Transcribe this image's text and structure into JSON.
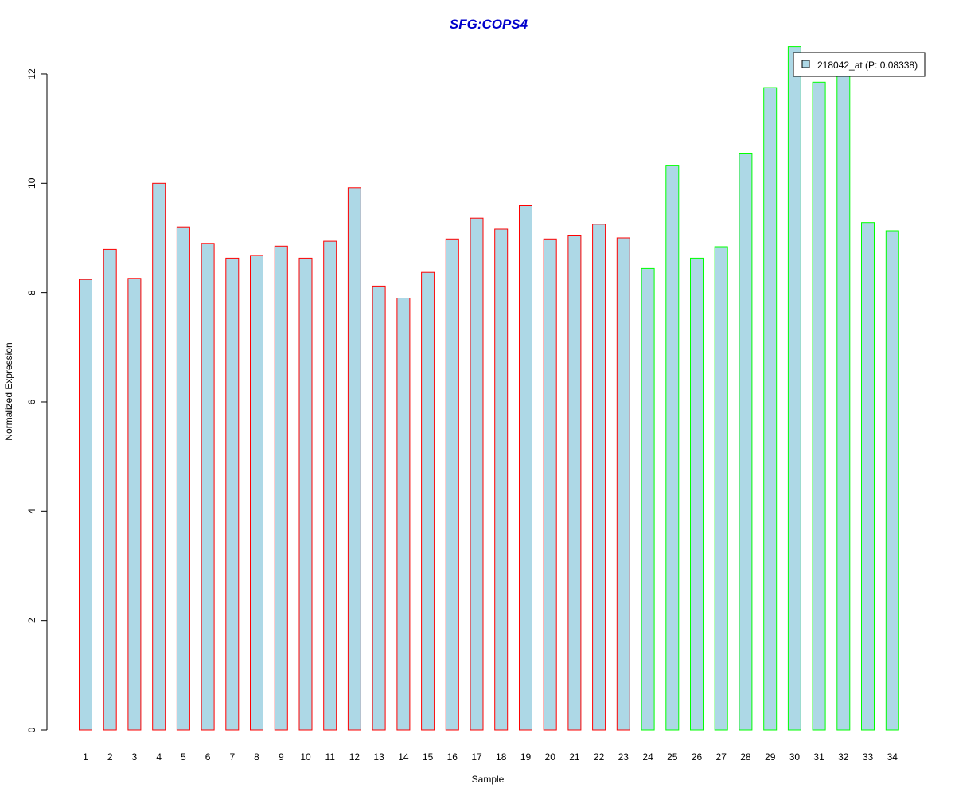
{
  "chart_data": {
    "type": "bar",
    "title": "SFG:COPS4",
    "xlabel": "Sample",
    "ylabel": "Normalized Expression",
    "ylim": [
      0,
      12.6
    ],
    "yticks": [
      0,
      2,
      4,
      6,
      8,
      10,
      12
    ],
    "grid": false,
    "legend_position": "top-right",
    "categories": [
      "1",
      "2",
      "3",
      "4",
      "5",
      "6",
      "7",
      "8",
      "9",
      "10",
      "11",
      "12",
      "13",
      "14",
      "15",
      "16",
      "17",
      "18",
      "19",
      "20",
      "21",
      "22",
      "23",
      "24",
      "25",
      "26",
      "27",
      "28",
      "29",
      "30",
      "31",
      "32",
      "33",
      "34"
    ],
    "series": [
      {
        "name": "218042_at (P: 0.08338)",
        "values": [
          8.24,
          8.79,
          8.26,
          10.0,
          9.2,
          8.9,
          8.63,
          8.68,
          8.85,
          8.63,
          8.94,
          9.92,
          8.12,
          7.9,
          8.37,
          8.98,
          9.36,
          9.16,
          9.59,
          8.98,
          9.05,
          9.25,
          9.0,
          8.44,
          10.33,
          8.63,
          8.84,
          10.55,
          11.75,
          12.5,
          11.85,
          12.0,
          9.28,
          9.13
        ],
        "groups": [
          "red",
          "red",
          "red",
          "red",
          "red",
          "red",
          "red",
          "red",
          "red",
          "red",
          "red",
          "red",
          "red",
          "red",
          "red",
          "red",
          "red",
          "red",
          "red",
          "red",
          "red",
          "red",
          "red",
          "green",
          "green",
          "green",
          "green",
          "green",
          "green",
          "green",
          "green",
          "green",
          "green",
          "green"
        ]
      }
    ],
    "colors": {
      "bar_fill": "#add8e6",
      "group_red": "#ff0000",
      "group_green": "#00ff00",
      "title": "#0000cc",
      "axis": "#000000"
    }
  }
}
